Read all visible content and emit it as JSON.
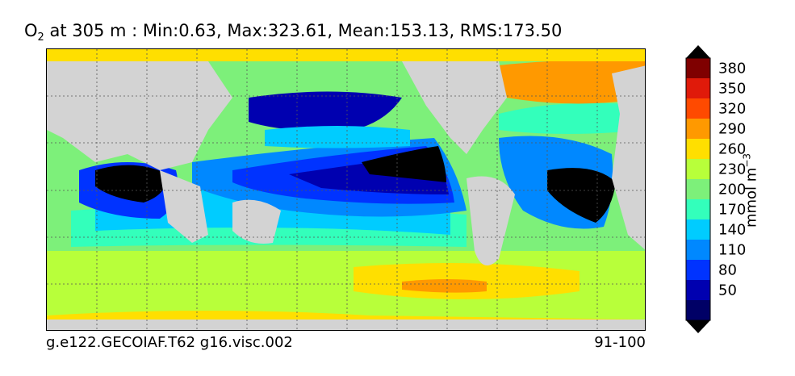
{
  "title": {
    "species": "O",
    "species_sub": "2",
    "rest": " at 305 m : Min:0.63, Max:323.61, Mean:153.13, RMS:173.50"
  },
  "footer": {
    "case_name": "g.e122.GECOIAF.T62 g16.visc.002",
    "years": "91-100"
  },
  "colorbar": {
    "unit_label": "mmol m",
    "unit_exp": "−3",
    "levels": [
      {
        "label": "380",
        "color": "#7f0000"
      },
      {
        "label": "350",
        "color": "#e01a0a"
      },
      {
        "label": "320",
        "color": "#ff4a00"
      },
      {
        "label": "290",
        "color": "#ff9900"
      },
      {
        "label": "260",
        "color": "#ffdf00"
      },
      {
        "label": "230",
        "color": "#b8ff3a"
      },
      {
        "label": "200",
        "color": "#7df07a"
      },
      {
        "label": "170",
        "color": "#33ffbb"
      },
      {
        "label": "140",
        "color": "#00ccff"
      },
      {
        "label": "110",
        "color": "#0088ff"
      },
      {
        "label": "80",
        "color": "#0033ff"
      },
      {
        "label": "50",
        "color": "#0000b0"
      }
    ],
    "bottom_color": "#000066",
    "top_color": "#000000",
    "under_color": "#000000"
  },
  "map_colors": {
    "land": "#d3d3d3",
    "no_data": "#ffffff"
  }
}
